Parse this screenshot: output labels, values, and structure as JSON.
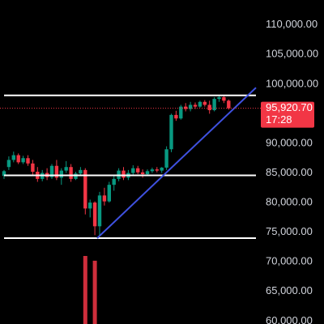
{
  "chart_data": {
    "type": "candlestick",
    "up_color": "#089981",
    "down_color": "#f23645",
    "ylim": [
      59500,
      114200
    ],
    "yticks": [
      {
        "value": 110000,
        "label": "110,000.00"
      },
      {
        "value": 105000,
        "label": "105,000.00"
      },
      {
        "value": 100000,
        "label": "100,000.00"
      },
      {
        "value": 90000,
        "label": "90,000.00"
      },
      {
        "value": 85000,
        "label": "85,000.00"
      },
      {
        "value": 80000,
        "label": "80,000.00"
      },
      {
        "value": 75000,
        "label": "75,000.00"
      },
      {
        "value": 70000,
        "label": "70,000.00"
      },
      {
        "value": 65000,
        "label": "65,000.00"
      },
      {
        "value": 60000,
        "label": "60,000.00"
      }
    ],
    "open": [
      84500,
      86000,
      87200,
      88000,
      86800,
      87500,
      86600,
      85200,
      84000,
      85000,
      84300,
      86200,
      84200,
      85400,
      86000,
      84000,
      84900,
      85500,
      79000,
      80000,
      76000,
      81200,
      80200,
      83000,
      84000,
      85400,
      84200,
      85000,
      85800,
      85100,
      84800,
      85300,
      85600,
      85400,
      85900,
      89000,
      94800,
      94200,
      96200,
      95800,
      96500,
      96200,
      97000,
      96500,
      95600,
      97500,
      97800,
      97200
    ],
    "high": [
      85500,
      87800,
      88600,
      88300,
      87900,
      88000,
      87200,
      86000,
      85500,
      85800,
      86500,
      87200,
      85800,
      87000,
      86500,
      85200,
      86000,
      85800,
      80500,
      80200,
      81800,
      82500,
      83500,
      84500,
      85800,
      86000,
      85500,
      86300,
      86200,
      85600,
      85600,
      85900,
      86000,
      86000,
      89500,
      95000,
      95500,
      96500,
      96800,
      97000,
      96900,
      97200,
      97300,
      97200,
      97800,
      98200,
      98100,
      97400
    ],
    "low": [
      84000,
      85500,
      86800,
      86500,
      86500,
      86200,
      84600,
      83500,
      83600,
      83800,
      84000,
      83800,
      83000,
      85000,
      83500,
      83800,
      84500,
      78000,
      77500,
      74500,
      74500,
      79500,
      80000,
      82000,
      83600,
      83800,
      83800,
      84500,
      84800,
      84200,
      84500,
      85000,
      85100,
      85000,
      85500,
      88500,
      93800,
      94000,
      95400,
      95400,
      95800,
      96000,
      96200,
      95000,
      95400,
      97000,
      96800,
      95700
    ],
    "close": [
      85300,
      87200,
      88000,
      86800,
      87500,
      86600,
      85200,
      84000,
      85000,
      84300,
      86200,
      84200,
      85400,
      86000,
      84000,
      84900,
      85500,
      79000,
      80000,
      76000,
      81200,
      80200,
      83000,
      84000,
      85400,
      84200,
      85000,
      85800,
      85100,
      84800,
      85300,
      85600,
      85400,
      85900,
      89000,
      94800,
      94200,
      96200,
      95800,
      96500,
      96200,
      97000,
      96500,
      95600,
      97500,
      97800,
      97200,
      95920.7
    ],
    "volume": [
      null,
      null,
      null,
      null,
      null,
      null,
      null,
      null,
      null,
      null,
      null,
      null,
      null,
      null,
      null,
      null,
      null,
      100,
      null,
      93,
      null,
      null,
      null,
      null,
      null,
      null,
      null,
      null,
      null,
      null,
      null,
      null,
      null,
      null,
      null,
      null,
      null,
      null,
      null,
      null,
      null,
      null,
      null,
      null,
      null,
      null,
      null,
      null
    ],
    "levels": [
      98100,
      84600,
      74000
    ],
    "trendline": [
      74000,
      99400
    ],
    "last_price": 95920.7,
    "last_price_label": "95,920.70",
    "countdown": "17:28"
  }
}
